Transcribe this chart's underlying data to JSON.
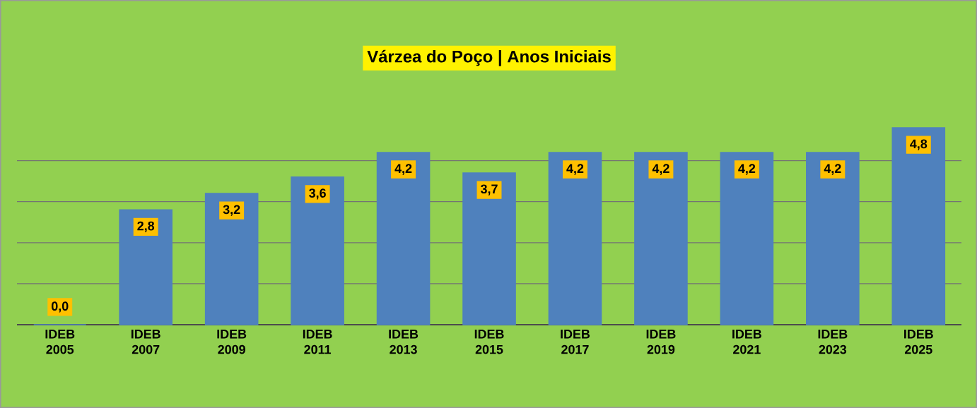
{
  "chart_data": {
    "type": "bar",
    "title": "Várzea do Poço |  Anos Iniciais",
    "categories": [
      "IDEB 2005",
      "IDEB 2007",
      "IDEB 2009",
      "IDEB 2011",
      "IDEB 2013",
      "IDEB 2015",
      "IDEB 2017",
      "IDEB 2019",
      "IDEB 2021",
      "IDEB 2023",
      "IDEB 2025"
    ],
    "values": [
      0.0,
      2.8,
      3.2,
      3.6,
      4.2,
      3.7,
      4.2,
      4.2,
      4.2,
      4.2,
      4.8
    ],
    "value_labels": [
      "0,0",
      "2,8",
      "3,2",
      "3,6",
      "4,2",
      "3,7",
      "4,2",
      "4,2",
      "4,2",
      "4,2",
      "4,8"
    ],
    "color": "#4f81bd",
    "tick_labels": "x",
    "grid": "y"
  }
}
